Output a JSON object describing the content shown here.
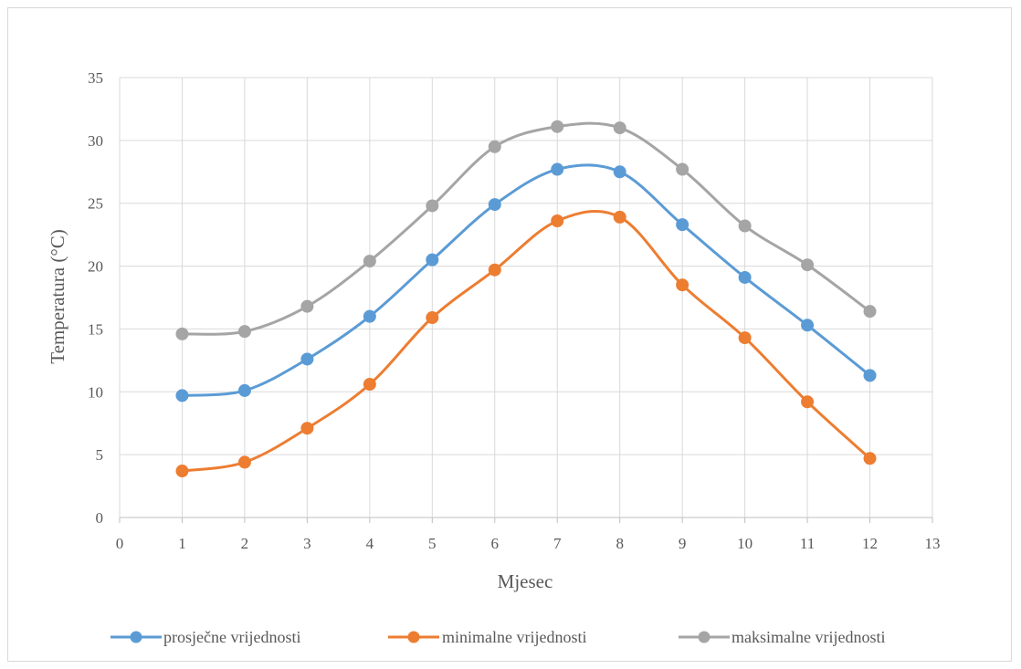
{
  "chart_data": {
    "type": "scatter",
    "title": "",
    "xlabel": "Mjesec",
    "ylabel": "Temperatura (°C)",
    "xlim": [
      0,
      13
    ],
    "ylim": [
      0,
      35
    ],
    "xticks": [
      0,
      1,
      2,
      3,
      4,
      5,
      6,
      7,
      8,
      9,
      10,
      11,
      12,
      13
    ],
    "yticks": [
      0,
      5,
      10,
      15,
      20,
      25,
      30,
      35
    ],
    "grid": true,
    "smooth_lines": true,
    "legend_position": "bottom",
    "x": [
      1,
      2,
      3,
      4,
      5,
      6,
      7,
      8,
      9,
      10,
      11,
      12
    ],
    "series": [
      {
        "name": "prosječne vrijednosti",
        "color": "#5b9bd5",
        "values": [
          9.7,
          10.1,
          12.6,
          16.0,
          20.5,
          24.9,
          27.7,
          27.5,
          23.3,
          19.1,
          15.3,
          11.3
        ]
      },
      {
        "name": "minimalne vrijednosti",
        "color": "#ed7d31",
        "values": [
          3.7,
          4.4,
          7.1,
          10.6,
          15.9,
          19.7,
          23.6,
          23.9,
          18.5,
          14.3,
          9.2,
          4.7
        ]
      },
      {
        "name": "maksimalne vrijednosti",
        "color": "#a5a5a5",
        "values": [
          14.6,
          14.8,
          16.8,
          20.4,
          24.8,
          29.5,
          31.1,
          31.0,
          27.7,
          23.2,
          20.1,
          16.4
        ]
      }
    ]
  }
}
